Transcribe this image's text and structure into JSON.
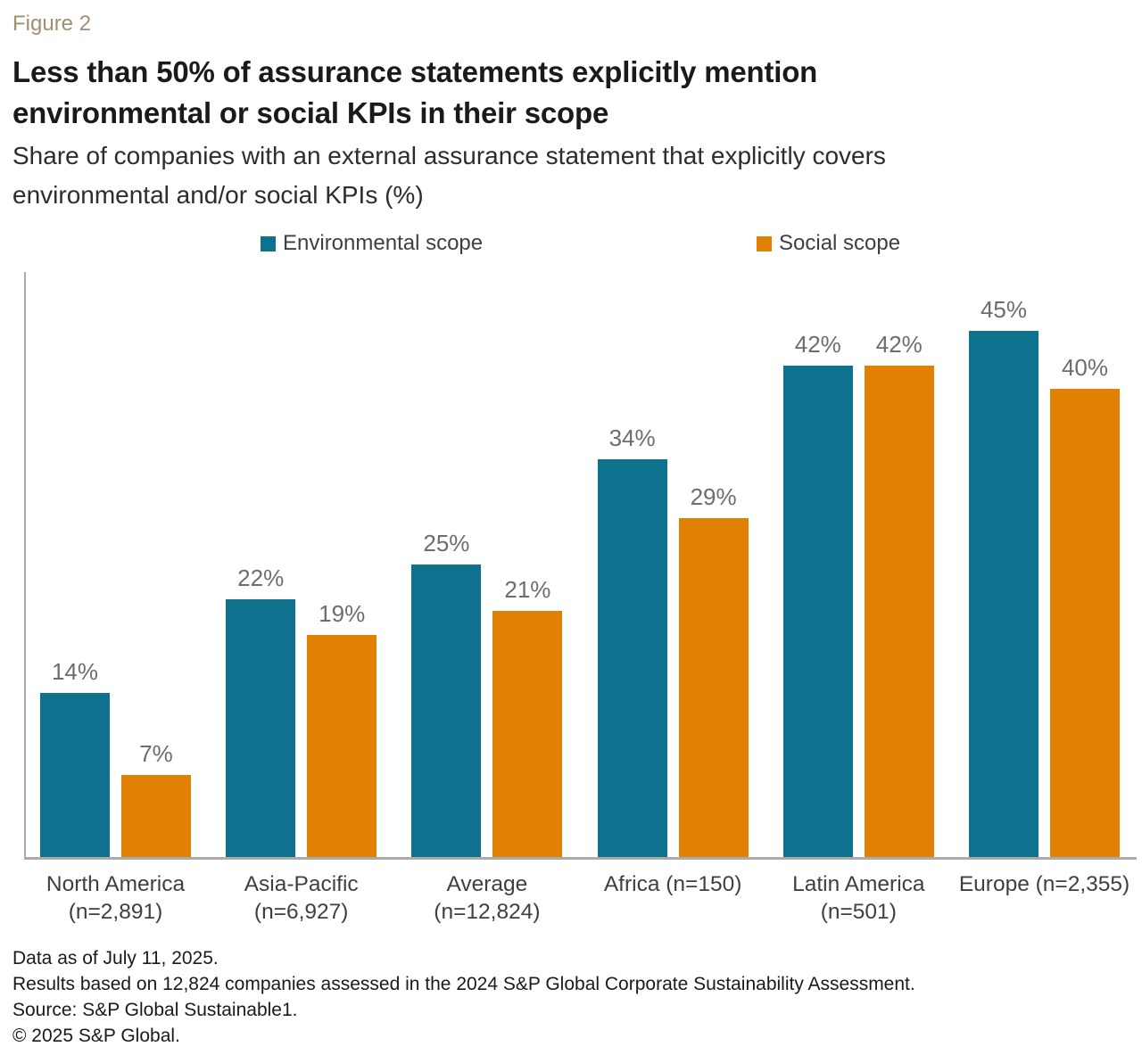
{
  "header": {
    "figure_label": "Figure 2",
    "title_lines": [
      "Less than 50% of assurance statements explicitly mention",
      "environmental or social KPIs in their scope"
    ],
    "subtitle_lines": [
      "Share of companies with an external assurance statement that explicitly covers",
      "environmental and/or social KPIs (%)"
    ]
  },
  "legend": [
    {
      "label": "Environmental scope",
      "color": "#0e718e"
    },
    {
      "label": "Social scope",
      "color": "#e08103"
    }
  ],
  "chart_data": {
    "type": "bar",
    "title": "Less than 50% of assurance statements explicitly mention environmental or social KPIs in their scope",
    "subtitle": "Share of companies with an external assurance statement that explicitly covers environmental and/or social KPIs (%)",
    "categories": [
      [
        "North America",
        "(n=2,891)"
      ],
      [
        "Asia-Pacific",
        "(n=6,927)"
      ],
      [
        "Average",
        "(n=12,824)"
      ],
      [
        "Africa (n=150)"
      ],
      [
        "Latin America",
        "(n=501)"
      ],
      [
        "Europe (n=2,355)"
      ]
    ],
    "series": [
      {
        "name": "Environmental scope",
        "color": "#0e718e",
        "values": [
          14,
          22,
          25,
          34,
          42,
          45
        ]
      },
      {
        "name": "Social scope",
        "color": "#e08103",
        "values": [
          7,
          19,
          21,
          29,
          42,
          40
        ]
      }
    ],
    "value_suffix": "%",
    "ylim": [
      0,
      50
    ],
    "grid": false,
    "legend_position": "top",
    "axis_color": "#ababab"
  },
  "footer": {
    "lines": [
      "Data as of July 11, 2025.",
      "Results based on 12,824 companies assessed in the 2024 S&P Global Corporate Sustainability Assessment.",
      "Source: S&P Global Sustainable1.",
      "© 2025 S&P Global."
    ]
  }
}
